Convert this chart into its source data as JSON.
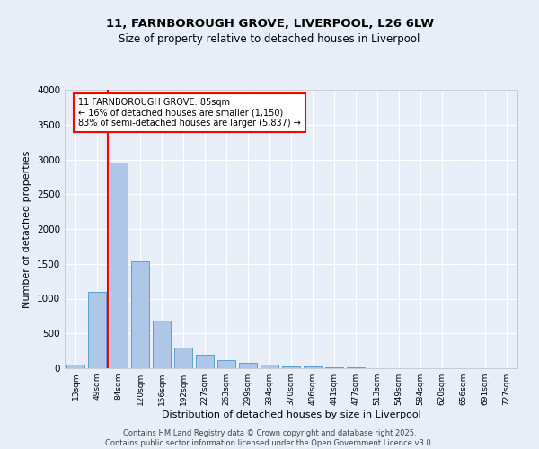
{
  "title_line1": "11, FARNBOROUGH GROVE, LIVERPOOL, L26 6LW",
  "title_line2": "Size of property relative to detached houses in Liverpool",
  "xlabel": "Distribution of detached houses by size in Liverpool",
  "ylabel": "Number of detached properties",
  "categories": [
    "13sqm",
    "49sqm",
    "84sqm",
    "120sqm",
    "156sqm",
    "192sqm",
    "227sqm",
    "263sqm",
    "299sqm",
    "334sqm",
    "370sqm",
    "406sqm",
    "441sqm",
    "477sqm",
    "513sqm",
    "549sqm",
    "584sqm",
    "620sqm",
    "656sqm",
    "691sqm",
    "727sqm"
  ],
  "values": [
    50,
    1100,
    2950,
    1530,
    680,
    300,
    190,
    110,
    80,
    50,
    30,
    20,
    15,
    10,
    5,
    3,
    2,
    1,
    0,
    0,
    0
  ],
  "bar_color": "#aec6e8",
  "bar_edge_color": "#5a9fd4",
  "annotation_text": "11 FARNBOROUGH GROVE: 85sqm\n← 16% of detached houses are smaller (1,150)\n83% of semi-detached houses are larger (5,837) →",
  "ylim": [
    0,
    4000
  ],
  "yticks": [
    0,
    500,
    1000,
    1500,
    2000,
    2500,
    3000,
    3500,
    4000
  ],
  "background_color": "#e8eef8",
  "grid_color": "#ffffff",
  "footer_line1": "Contains HM Land Registry data © Crown copyright and database right 2025.",
  "footer_line2": "Contains public sector information licensed under the Open Government Licence v3.0."
}
